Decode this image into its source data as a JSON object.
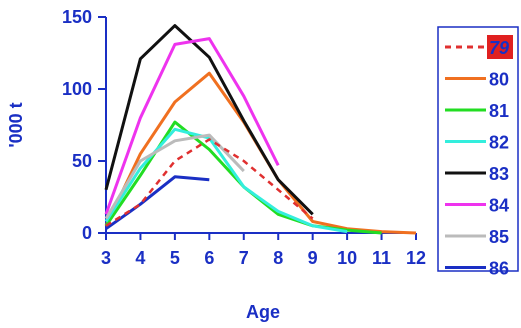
{
  "chart_data": {
    "type": "line",
    "title": "",
    "xlabel": "Age",
    "ylabel": "'000 t",
    "xlim": [
      3,
      12
    ],
    "ylim": [
      0,
      150
    ],
    "xticks": [
      "3",
      "4",
      "5",
      "6",
      "7",
      "8",
      "9",
      "10",
      "11",
      "12"
    ],
    "yticks": [
      "0",
      "50",
      "100",
      "150"
    ],
    "grid": false,
    "legend_position": "right",
    "series": [
      {
        "name": "79",
        "color": "#e03030",
        "dashed": true,
        "highlight": true,
        "x": [
          3,
          4,
          5,
          6,
          7,
          8,
          9
        ],
        "y": [
          5,
          20,
          50,
          65,
          50,
          30,
          10
        ]
      },
      {
        "name": "80",
        "color": "#f07020",
        "dashed": false,
        "highlight": false,
        "x": [
          3,
          4,
          5,
          6,
          7,
          8,
          9,
          10,
          11,
          12
        ],
        "y": [
          5,
          55,
          91,
          111,
          77,
          37,
          8,
          3,
          1,
          0
        ]
      },
      {
        "name": "81",
        "color": "#22dd22",
        "dashed": false,
        "highlight": false,
        "x": [
          3,
          4,
          5,
          6,
          7,
          8,
          9,
          10,
          11
        ],
        "y": [
          5,
          40,
          77,
          58,
          32,
          13,
          5,
          2,
          0
        ]
      },
      {
        "name": "82",
        "color": "#33eedd",
        "dashed": false,
        "highlight": false,
        "x": [
          3,
          4,
          5,
          6,
          7,
          8,
          9,
          10
        ],
        "y": [
          8,
          45,
          72,
          66,
          32,
          15,
          5,
          1
        ]
      },
      {
        "name": "83",
        "color": "#111111",
        "dashed": false,
        "highlight": false,
        "x": [
          3,
          4,
          5,
          6,
          7,
          8,
          9
        ],
        "y": [
          30,
          121,
          144,
          122,
          78,
          37,
          13
        ]
      },
      {
        "name": "84",
        "color": "#ee33ee",
        "dashed": false,
        "highlight": false,
        "x": [
          3,
          4,
          5,
          6,
          7,
          8
        ],
        "y": [
          13,
          80,
          131,
          135,
          95,
          47
        ]
      },
      {
        "name": "85",
        "color": "#bbbbbb",
        "dashed": false,
        "highlight": false,
        "x": [
          3,
          4,
          5,
          6,
          7
        ],
        "y": [
          10,
          50,
          64,
          68,
          43
        ]
      },
      {
        "name": "86",
        "color": "#1a2fc4",
        "dashed": false,
        "highlight": false,
        "x": [
          3,
          4,
          5,
          6
        ],
        "y": [
          3,
          20,
          39,
          37
        ]
      }
    ]
  }
}
